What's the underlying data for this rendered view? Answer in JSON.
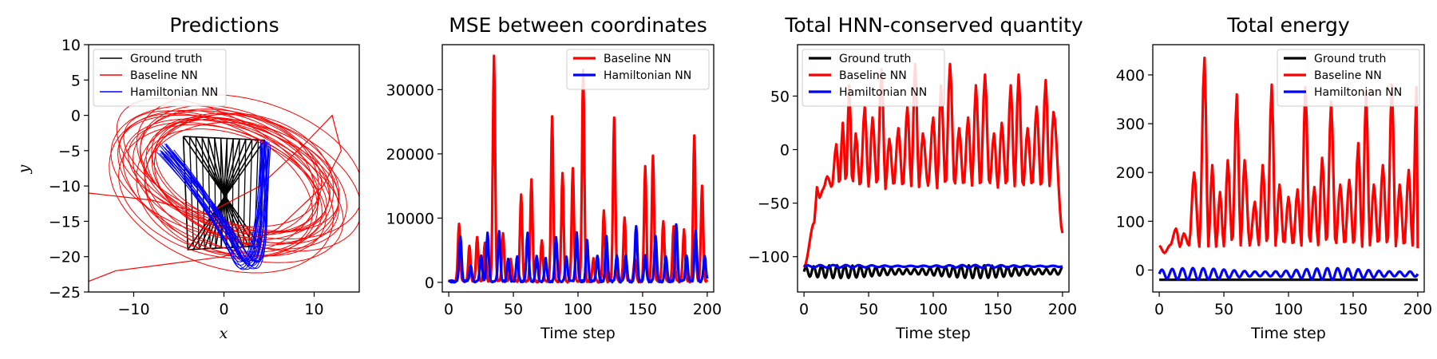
{
  "chart_data": [
    {
      "type": "line",
      "title": "Predictions",
      "xlabel": "x",
      "ylabel": "y",
      "xlim": [
        -15,
        15
      ],
      "ylim": [
        -25,
        10
      ],
      "xticks": [
        -10,
        0,
        10
      ],
      "yticks": [
        10,
        5,
        0,
        -5,
        -10,
        -15,
        -20,
        -25
      ],
      "legend": {
        "placement": "top-left",
        "entries": [
          "Ground truth",
          "Baseline NN",
          "Hamiltonian NN"
        ]
      },
      "series": [
        {
          "name": "Ground truth",
          "color": "#000000",
          "x": [
            -4.5,
            4.5,
            4.0,
            -4.0,
            -4.5,
            4.5,
            4.0,
            -4.0
          ],
          "y": [
            -3,
            -3.5,
            -18.5,
            -19.0,
            -3,
            -3.5,
            -18.5,
            -19.0
          ]
        },
        {
          "name": "Baseline NN",
          "color": "#ff0000",
          "x": [
            -15,
            -8,
            -2,
            4,
            9,
            12,
            13,
            11,
            6,
            0,
            -6,
            -12,
            -15
          ],
          "y": [
            -11,
            -12,
            -14,
            -10,
            -4,
            0,
            -5,
            -10,
            -16,
            -20,
            -21,
            -22,
            -23.5
          ]
        },
        {
          "name": "Hamiltonian NN",
          "color": "#0000ff",
          "x": [
            -8,
            -5,
            -2,
            0,
            2,
            4,
            5,
            4,
            2,
            0,
            -2,
            -5,
            -8
          ],
          "y": [
            -7,
            -5,
            -10,
            -18,
            -20,
            -8,
            -4,
            -3,
            -12,
            -19,
            -14,
            -6,
            -7
          ]
        }
      ]
    },
    {
      "type": "line",
      "title": "MSE between coordinates",
      "xlabel": "Time step",
      "ylabel": "",
      "xlim": [
        -5,
        205
      ],
      "ylim": [
        -1500,
        37000
      ],
      "xticks": [
        0,
        50,
        100,
        150,
        200
      ],
      "yticks": [
        0,
        10000,
        20000,
        30000
      ],
      "legend": {
        "placement": "top-right",
        "entries": [
          "Baseline NN",
          "Hamiltonian NN"
        ]
      },
      "series": [
        {
          "name": "Baseline NN",
          "color": "#ff0000",
          "peaks": [
            [
              8,
              9000
            ],
            [
              16,
              5500
            ],
            [
              22,
              7000
            ],
            [
              28,
              6000
            ],
            [
              35,
              35000
            ],
            [
              42,
              7500
            ],
            [
              48,
              3500
            ],
            [
              56,
              13500
            ],
            [
              64,
              16000
            ],
            [
              72,
              6500
            ],
            [
              80,
              25700
            ],
            [
              88,
              17000
            ],
            [
              96,
              17500
            ],
            [
              104,
              33000
            ],
            [
              112,
              3500
            ],
            [
              120,
              11000
            ],
            [
              128,
              25600
            ],
            [
              136,
              10000
            ],
            [
              144,
              3500
            ],
            [
              152,
              18000
            ],
            [
              158,
              19700
            ],
            [
              166,
              9500
            ],
            [
              174,
              8500
            ],
            [
              182,
              8000
            ],
            [
              190,
              22800
            ],
            [
              196,
              15000
            ]
          ]
        },
        {
          "name": "Hamiltonian NN",
          "color": "#0000ff",
          "peaks": [
            [
              9,
              7000
            ],
            [
              17,
              2500
            ],
            [
              25,
              4000
            ],
            [
              30,
              7500
            ],
            [
              39,
              7900
            ],
            [
              46,
              3500
            ],
            [
              53,
              4000
            ],
            [
              61,
              7500
            ],
            [
              68,
              4000
            ],
            [
              75,
              3500
            ],
            [
              83,
              7000
            ],
            [
              91,
              4000
            ],
            [
              99,
              7500
            ],
            [
              107,
              6500
            ],
            [
              115,
              4000
            ],
            [
              122,
              7000
            ],
            [
              130,
              4000
            ],
            [
              137,
              4000
            ],
            [
              145,
              8700
            ],
            [
              152,
              4000
            ],
            [
              160,
              7000
            ],
            [
              168,
              4000
            ],
            [
              176,
              9000
            ],
            [
              184,
              4000
            ],
            [
              191,
              8000
            ],
            [
              198,
              4000
            ]
          ]
        }
      ]
    },
    {
      "type": "line",
      "title": "Total HNN-conserved quantity",
      "xlabel": "Time step",
      "ylabel": "",
      "xlim": [
        -5,
        205
      ],
      "ylim": [
        -133,
        98
      ],
      "xticks": [
        0,
        50,
        100,
        150,
        200
      ],
      "yticks": [
        50,
        0,
        -50,
        -100
      ],
      "legend": {
        "placement": "top-left",
        "entries": [
          "Ground truth",
          "Baseline NN",
          "Hamiltonian NN"
        ]
      },
      "series": [
        {
          "name": "Ground truth",
          "color": "#000000",
          "baseline": -114,
          "amplitude": 6,
          "period": 6
        },
        {
          "name": "Baseline NN",
          "color": "#ff0000",
          "start": -110,
          "trough": -35,
          "peaks": [
            [
              8,
              -68
            ],
            [
              12,
              -45
            ],
            [
              18,
              -25
            ],
            [
              25,
              5
            ],
            [
              30,
              25
            ],
            [
              35,
              60
            ],
            [
              40,
              15
            ],
            [
              47,
              40
            ],
            [
              53,
              30
            ],
            [
              60,
              75
            ],
            [
              66,
              10
            ],
            [
              73,
              20
            ],
            [
              80,
              40
            ],
            [
              86,
              80
            ],
            [
              92,
              15
            ],
            [
              100,
              30
            ],
            [
              106,
              60
            ],
            [
              113,
              80
            ],
            [
              120,
              20
            ],
            [
              127,
              30
            ],
            [
              133,
              60
            ],
            [
              140,
              70
            ],
            [
              147,
              15
            ],
            [
              153,
              25
            ],
            [
              160,
              60
            ],
            [
              166,
              70
            ],
            [
              173,
              20
            ],
            [
              180,
              40
            ],
            [
              187,
              65
            ],
            [
              193,
              35
            ]
          ],
          "end": -78
        },
        {
          "name": "Hamiltonian NN",
          "color": "#0000ff",
          "baseline": -109,
          "amplitude": 1.2,
          "period": 10
        }
      ]
    },
    {
      "type": "line",
      "title": "Total energy",
      "xlabel": "Time step",
      "ylabel": "",
      "xlim": [
        -5,
        205
      ],
      "ylim": [
        -45,
        462
      ],
      "xticks": [
        0,
        50,
        100,
        150,
        200
      ],
      "yticks": [
        0,
        100,
        200,
        300,
        400
      ],
      "legend": {
        "placement": "top-right",
        "entries": [
          "Ground truth",
          "Baseline NN",
          "Hamiltonian NN"
        ]
      },
      "series": [
        {
          "name": "Ground truth",
          "color": "#000000",
          "baseline": -20
        },
        {
          "name": "Baseline NN",
          "color": "#ff0000",
          "trough": 50,
          "peaks": [
            [
              4,
              35
            ],
            [
              13,
              85
            ],
            [
              19,
              75
            ],
            [
              27,
              200
            ],
            [
              35,
              435
            ],
            [
              41,
              215
            ],
            [
              47,
              160
            ],
            [
              53,
              225
            ],
            [
              60,
              360
            ],
            [
              66,
              225
            ],
            [
              74,
              140
            ],
            [
              80,
              215
            ],
            [
              87,
              380
            ],
            [
              93,
              175
            ],
            [
              100,
              150
            ],
            [
              107,
              165
            ],
            [
              113,
              375
            ],
            [
              120,
              170
            ],
            [
              126,
              230
            ],
            [
              133,
              345
            ],
            [
              140,
              175
            ],
            [
              147,
              185
            ],
            [
              154,
              260
            ],
            [
              160,
              365
            ],
            [
              166,
              175
            ],
            [
              173,
              215
            ],
            [
              180,
              380
            ],
            [
              186,
              175
            ],
            [
              193,
              205
            ],
            [
              199,
              375
            ]
          ],
          "end": 45
        },
        {
          "name": "Hamiltonian NN",
          "color": "#0000ff",
          "baseline": -8,
          "amplitude": 12,
          "period": 8
        }
      ]
    }
  ]
}
